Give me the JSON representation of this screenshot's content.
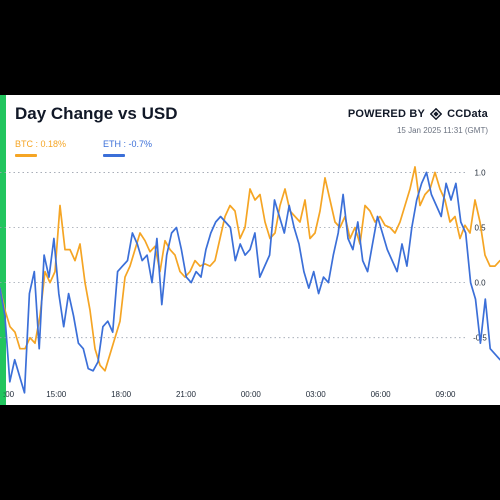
{
  "header": {
    "title": "Day Change vs USD",
    "powered_by": "POWERED BY",
    "brand": "CCData",
    "timestamp": "15 Jan 2025 11:31 (GMT)"
  },
  "legend": {
    "btc_label": "BTC : 0.18%",
    "eth_label": "ETH : -0.7%"
  },
  "colors": {
    "btc": "#f5a524",
    "eth": "#3b6fd8",
    "accent": "#22c55e",
    "grid": "#9ca3af"
  },
  "chart_data": {
    "type": "line",
    "x_ticks": [
      "15:00",
      "18:00",
      "21:00",
      "00:00",
      "03:00",
      "06:00",
      "09:00"
    ],
    "x_edge_label": ":00",
    "x_range_hours": [
      12.4,
      11.52
    ],
    "y_ticks": [
      1.0,
      0.5,
      0.0,
      -0.5
    ],
    "y_tick_labels": [
      "1.0",
      "0.5",
      "0.0",
      "-0.5"
    ],
    "ylim": [
      -1.02,
      1.14
    ],
    "grid": "horizontal dotted",
    "series": [
      {
        "name": "BTC",
        "color": "#f5a524",
        "values": [
          -0.05,
          -0.25,
          -0.4,
          -0.45,
          -0.6,
          -0.6,
          -0.5,
          -0.55,
          -0.3,
          0.1,
          0.0,
          0.1,
          0.7,
          0.3,
          0.3,
          0.2,
          0.35,
          0.0,
          -0.25,
          -0.6,
          -0.75,
          -0.8,
          -0.65,
          -0.5,
          -0.35,
          0.05,
          0.15,
          0.3,
          0.45,
          0.38,
          0.28,
          0.33,
          0.1,
          0.38,
          0.3,
          0.25,
          0.1,
          0.05,
          0.1,
          0.2,
          0.15,
          0.17,
          0.15,
          0.2,
          0.4,
          0.6,
          0.7,
          0.65,
          0.4,
          0.5,
          0.85,
          0.75,
          0.8,
          0.55,
          0.4,
          0.45,
          0.7,
          0.85,
          0.65,
          0.6,
          0.55,
          0.75,
          0.4,
          0.45,
          0.65,
          0.95,
          0.75,
          0.55,
          0.5,
          0.6,
          0.4,
          0.5,
          0.35,
          0.7,
          0.65,
          0.55,
          0.6,
          0.52,
          0.5,
          0.45,
          0.55,
          0.7,
          0.85,
          1.05,
          0.7,
          0.8,
          0.85,
          1.0,
          0.85,
          0.75,
          0.55,
          0.6,
          0.4,
          0.52,
          0.45,
          0.75,
          0.55,
          0.25,
          0.15,
          0.15,
          0.2
        ]
      },
      {
        "name": "ETH",
        "color": "#3b6fd8",
        "values": [
          -0.05,
          -0.3,
          -0.9,
          -0.7,
          -0.85,
          -1.0,
          -0.1,
          0.1,
          -0.6,
          0.25,
          0.05,
          0.4,
          -0.1,
          -0.4,
          -0.1,
          -0.3,
          -0.55,
          -0.6,
          -0.78,
          -0.8,
          -0.72,
          -0.4,
          -0.35,
          -0.45,
          0.1,
          0.15,
          0.2,
          0.45,
          0.35,
          0.2,
          0.25,
          0.0,
          0.4,
          -0.2,
          0.25,
          0.45,
          0.5,
          0.3,
          0.05,
          0.0,
          0.1,
          0.05,
          0.3,
          0.45,
          0.55,
          0.6,
          0.55,
          0.5,
          0.2,
          0.35,
          0.25,
          0.3,
          0.45,
          0.05,
          0.15,
          0.25,
          0.75,
          0.6,
          0.45,
          0.7,
          0.5,
          0.35,
          0.1,
          -0.05,
          0.1,
          -0.1,
          0.05,
          0.0,
          0.25,
          0.45,
          0.8,
          0.4,
          0.3,
          0.55,
          0.2,
          0.1,
          0.35,
          0.6,
          0.45,
          0.3,
          0.2,
          0.1,
          0.35,
          0.15,
          0.5,
          0.75,
          0.9,
          1.0,
          0.8,
          0.7,
          0.6,
          0.9,
          0.75,
          0.9,
          0.55,
          0.45,
          0.0,
          -0.15,
          -0.55,
          -0.15,
          -0.6,
          -0.65,
          -0.7
        ]
      }
    ]
  }
}
